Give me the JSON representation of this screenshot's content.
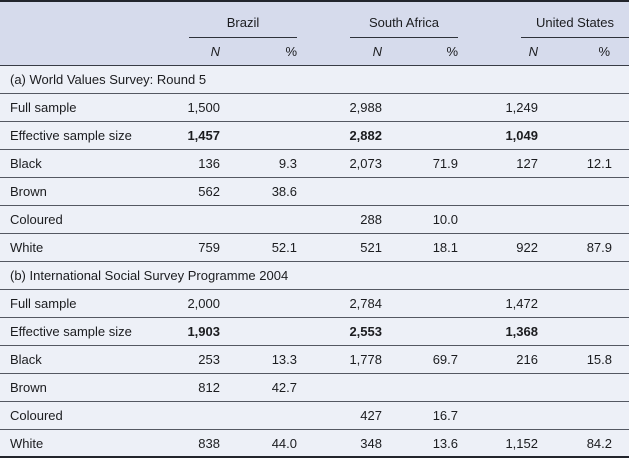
{
  "colors": {
    "header_bg": "#d6dbec",
    "body_bg": "#edf0f7",
    "row_line": "#545862",
    "strong_line": "#22252c",
    "text": "#1b1c1f"
  },
  "header": {
    "groups": [
      {
        "label": "Brazil"
      },
      {
        "label": "South Africa"
      },
      {
        "label": "United States"
      }
    ],
    "sub": {
      "n": "N",
      "pct": "%"
    }
  },
  "sections": [
    {
      "title": "(a) World Values Survey: Round 5",
      "rows": [
        {
          "label": "Full sample",
          "cells": [
            "1,500",
            "",
            "2,988",
            "",
            "1,249",
            ""
          ]
        },
        {
          "label": "Effective sample size",
          "bold": true,
          "cells": [
            "1,457",
            "",
            "2,882",
            "",
            "1,049",
            ""
          ]
        },
        {
          "label": "Black",
          "cells": [
            "136",
            "9.3",
            "2,073",
            "71.9",
            "127",
            "12.1"
          ]
        },
        {
          "label": "Brown",
          "cells": [
            "562",
            "38.6",
            "",
            "",
            "",
            ""
          ]
        },
        {
          "label": "Coloured",
          "cells": [
            "",
            "",
            "288",
            "10.0",
            "",
            ""
          ]
        },
        {
          "label": "White",
          "cells": [
            "759",
            "52.1",
            "521",
            "18.1",
            "922",
            "87.9"
          ]
        }
      ]
    },
    {
      "title": "(b) International Social Survey Programme 2004",
      "rows": [
        {
          "label": "Full sample",
          "cells": [
            "2,000",
            "",
            "2,784",
            "",
            "1,472",
            ""
          ]
        },
        {
          "label": "Effective sample size",
          "bold": true,
          "cells": [
            "1,903",
            "",
            "2,553",
            "",
            "1,368",
            ""
          ]
        },
        {
          "label": "Black",
          "cells": [
            "253",
            "13.3",
            "1,778",
            "69.7",
            "216",
            "15.8"
          ]
        },
        {
          "label": "Brown",
          "cells": [
            "812",
            "42.7",
            "",
            "",
            "",
            ""
          ]
        },
        {
          "label": "Coloured",
          "cells": [
            "",
            "",
            "427",
            "16.7",
            "",
            ""
          ]
        },
        {
          "label": "White",
          "cells": [
            "838",
            "44.0",
            "348",
            "13.6",
            "1,152",
            "84.2"
          ]
        }
      ]
    }
  ]
}
